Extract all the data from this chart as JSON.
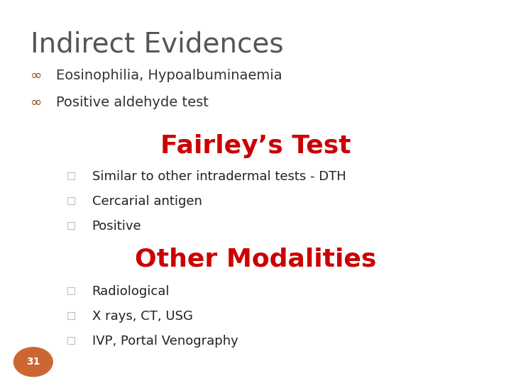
{
  "title": "Indirect Evidences",
  "title_color": "#555555",
  "title_fontsize": 28,
  "bullet_symbol": "∞",
  "bullet_color": "#8B4513",
  "bullet_items": [
    "Eosinophilia, Hypoalbuminaemia",
    "Positive aldehyde test"
  ],
  "bullet_fontsize": 14,
  "bullet_text_color": "#333333",
  "fairley_heading": "Fairley’s Test",
  "fairley_color": "#CC0000",
  "fairley_fontsize": 26,
  "sub_bullet_symbol": "□",
  "sub_bullet_color": "#aaaaaa",
  "fairley_items": [
    "Similar to other intradermal tests - DTH",
    "Cercarial antigen",
    "Positive"
  ],
  "fairley_items_fontsize": 13,
  "fairley_items_color": "#222222",
  "other_heading": "Other Modalities",
  "other_color": "#CC0000",
  "other_fontsize": 26,
  "other_items": [
    "Radiological",
    "X rays, CT, USG",
    "IVP, Portal Venography"
  ],
  "other_items_fontsize": 13,
  "other_items_color": "#222222",
  "page_number": "31",
  "page_num_bg": "#CC6633",
  "page_num_color": "#ffffff",
  "bg_color": "#ffffff",
  "slide_bg": "#e8e8e8"
}
